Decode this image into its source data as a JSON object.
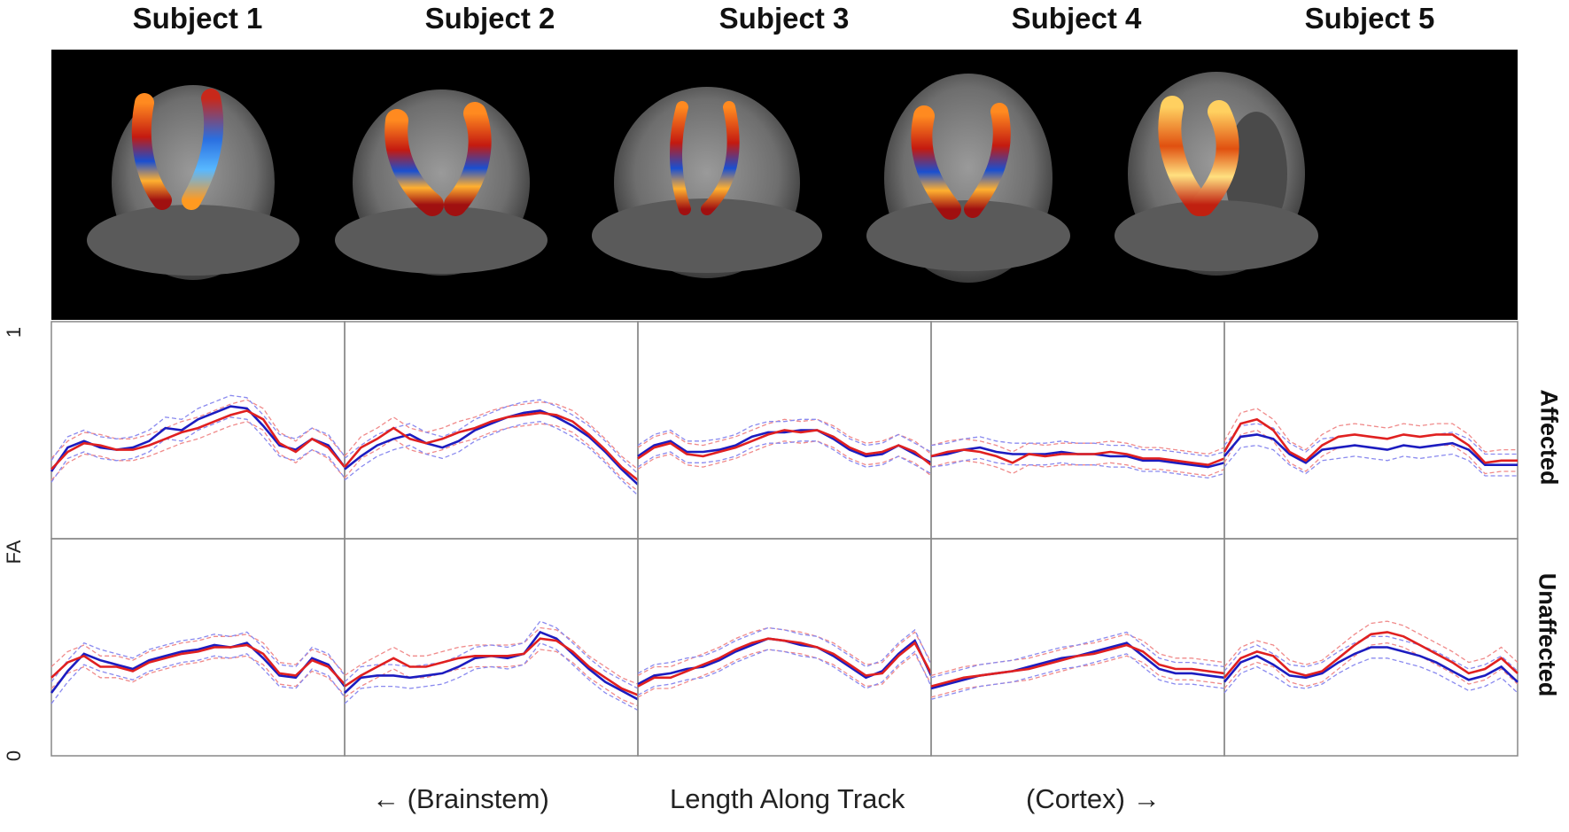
{
  "subjects": [
    "Subject 1",
    "Subject 2",
    "Subject 3",
    "Subject 4",
    "Subject 5"
  ],
  "y_axis": {
    "label": "FA",
    "min_label": "0",
    "max_label": "1"
  },
  "rows": {
    "top": "Affected",
    "bottom": "Unaffected"
  },
  "x_axis": {
    "left_label": "← (Brainstem)",
    "center_label": "Length Along Track",
    "right_label": "(Cortex) →"
  },
  "colors": {
    "red_series": "#e02020",
    "blue_series": "#1c1cc0",
    "red_band": "#f08a8a",
    "blue_band": "#8a8aef",
    "panel_border": "#888888"
  },
  "chart_data": {
    "type": "line",
    "ylim": [
      0,
      1
    ],
    "xlabel": "Length Along Track",
    "ylabel": "FA",
    "panels": [
      {
        "subject": "Subject 1",
        "row": "Affected",
        "red": [
          0.32,
          0.4,
          0.44,
          0.43,
          0.41,
          0.41,
          0.43,
          0.46,
          0.49,
          0.51,
          0.54,
          0.57,
          0.59,
          0.55,
          0.44,
          0.4,
          0.46,
          0.42,
          0.33
        ],
        "blue": [
          0.31,
          0.42,
          0.45,
          0.42,
          0.41,
          0.42,
          0.45,
          0.51,
          0.5,
          0.55,
          0.58,
          0.61,
          0.6,
          0.52,
          0.43,
          0.41,
          0.46,
          0.43,
          0.33
        ]
      },
      {
        "subject": "Subject 2",
        "row": "Affected",
        "red": [
          0.33,
          0.42,
          0.46,
          0.51,
          0.46,
          0.44,
          0.46,
          0.49,
          0.51,
          0.54,
          0.56,
          0.57,
          0.58,
          0.57,
          0.54,
          0.48,
          0.41,
          0.33,
          0.27
        ],
        "blue": [
          0.32,
          0.38,
          0.43,
          0.46,
          0.48,
          0.44,
          0.42,
          0.45,
          0.5,
          0.53,
          0.56,
          0.58,
          0.59,
          0.56,
          0.52,
          0.47,
          0.4,
          0.32,
          0.25
        ]
      },
      {
        "subject": "Subject 3",
        "row": "Affected",
        "red": [
          0.37,
          0.42,
          0.44,
          0.39,
          0.38,
          0.4,
          0.42,
          0.45,
          0.48,
          0.5,
          0.49,
          0.5,
          0.47,
          0.42,
          0.39,
          0.4,
          0.43,
          0.4,
          0.34
        ],
        "blue": [
          0.38,
          0.43,
          0.45,
          0.4,
          0.4,
          0.41,
          0.43,
          0.47,
          0.49,
          0.49,
          0.5,
          0.5,
          0.46,
          0.41,
          0.38,
          0.39,
          0.43,
          0.39,
          0.35
        ]
      },
      {
        "subject": "Subject 4",
        "row": "Affected",
        "red": [
          0.38,
          0.4,
          0.41,
          0.4,
          0.38,
          0.35,
          0.39,
          0.38,
          0.39,
          0.39,
          0.39,
          0.4,
          0.39,
          0.37,
          0.37,
          0.36,
          0.35,
          0.34,
          0.37
        ],
        "blue": [
          0.38,
          0.39,
          0.41,
          0.42,
          0.4,
          0.39,
          0.39,
          0.39,
          0.4,
          0.39,
          0.39,
          0.38,
          0.38,
          0.36,
          0.36,
          0.35,
          0.34,
          0.33,
          0.35
        ]
      },
      {
        "subject": "Subject 5",
        "row": "Affected",
        "red": [
          0.4,
          0.53,
          0.55,
          0.5,
          0.4,
          0.36,
          0.43,
          0.47,
          0.48,
          0.47,
          0.46,
          0.48,
          0.47,
          0.48,
          0.48,
          0.43,
          0.35,
          0.36,
          0.36
        ],
        "blue": [
          0.38,
          0.47,
          0.48,
          0.46,
          0.39,
          0.35,
          0.41,
          0.42,
          0.43,
          0.42,
          0.41,
          0.43,
          0.42,
          0.43,
          0.44,
          0.41,
          0.34,
          0.34,
          0.34
        ]
      },
      {
        "subject": "Subject 1",
        "row": "Unaffected",
        "red": [
          0.36,
          0.43,
          0.46,
          0.41,
          0.41,
          0.39,
          0.43,
          0.45,
          0.47,
          0.48,
          0.5,
          0.5,
          0.51,
          0.47,
          0.38,
          0.37,
          0.44,
          0.41,
          0.33
        ],
        "blue": [
          0.29,
          0.39,
          0.47,
          0.44,
          0.42,
          0.4,
          0.44,
          0.46,
          0.48,
          0.49,
          0.51,
          0.5,
          0.52,
          0.45,
          0.37,
          0.36,
          0.45,
          0.42,
          0.32
        ]
      },
      {
        "subject": "Subject 2",
        "row": "Unaffected",
        "red": [
          0.32,
          0.37,
          0.41,
          0.45,
          0.41,
          0.41,
          0.43,
          0.45,
          0.46,
          0.46,
          0.46,
          0.47,
          0.54,
          0.53,
          0.48,
          0.41,
          0.36,
          0.31,
          0.28
        ],
        "blue": [
          0.29,
          0.36,
          0.37,
          0.37,
          0.36,
          0.37,
          0.38,
          0.41,
          0.45,
          0.46,
          0.45,
          0.47,
          0.57,
          0.54,
          0.47,
          0.4,
          0.34,
          0.3,
          0.26
        ]
      },
      {
        "subject": "Subject 3",
        "row": "Unaffected",
        "red": [
          0.32,
          0.36,
          0.36,
          0.39,
          0.42,
          0.45,
          0.49,
          0.52,
          0.54,
          0.53,
          0.52,
          0.5,
          0.47,
          0.42,
          0.37,
          0.38,
          0.46,
          0.52,
          0.38
        ],
        "blue": [
          0.33,
          0.37,
          0.38,
          0.4,
          0.41,
          0.44,
          0.48,
          0.51,
          0.54,
          0.53,
          0.51,
          0.5,
          0.46,
          0.41,
          0.36,
          0.39,
          0.47,
          0.53,
          0.37
        ]
      },
      {
        "subject": "Subject 4",
        "row": "Unaffected",
        "red": [
          0.32,
          0.34,
          0.36,
          0.37,
          0.38,
          0.39,
          0.4,
          0.42,
          0.44,
          0.46,
          0.47,
          0.49,
          0.51,
          0.48,
          0.42,
          0.4,
          0.4,
          0.39,
          0.38
        ],
        "blue": [
          0.31,
          0.33,
          0.35,
          0.37,
          0.38,
          0.39,
          0.41,
          0.43,
          0.45,
          0.46,
          0.48,
          0.5,
          0.52,
          0.46,
          0.4,
          0.38,
          0.38,
          0.37,
          0.36
        ]
      },
      {
        "subject": "Subject 5",
        "row": "Unaffected",
        "red": [
          0.36,
          0.45,
          0.48,
          0.46,
          0.39,
          0.37,
          0.39,
          0.45,
          0.51,
          0.56,
          0.57,
          0.55,
          0.51,
          0.47,
          0.43,
          0.38,
          0.4,
          0.45,
          0.38
        ],
        "blue": [
          0.34,
          0.43,
          0.46,
          0.42,
          0.37,
          0.36,
          0.38,
          0.43,
          0.47,
          0.5,
          0.5,
          0.48,
          0.46,
          0.43,
          0.39,
          0.35,
          0.37,
          0.41,
          0.34
        ]
      }
    ]
  }
}
